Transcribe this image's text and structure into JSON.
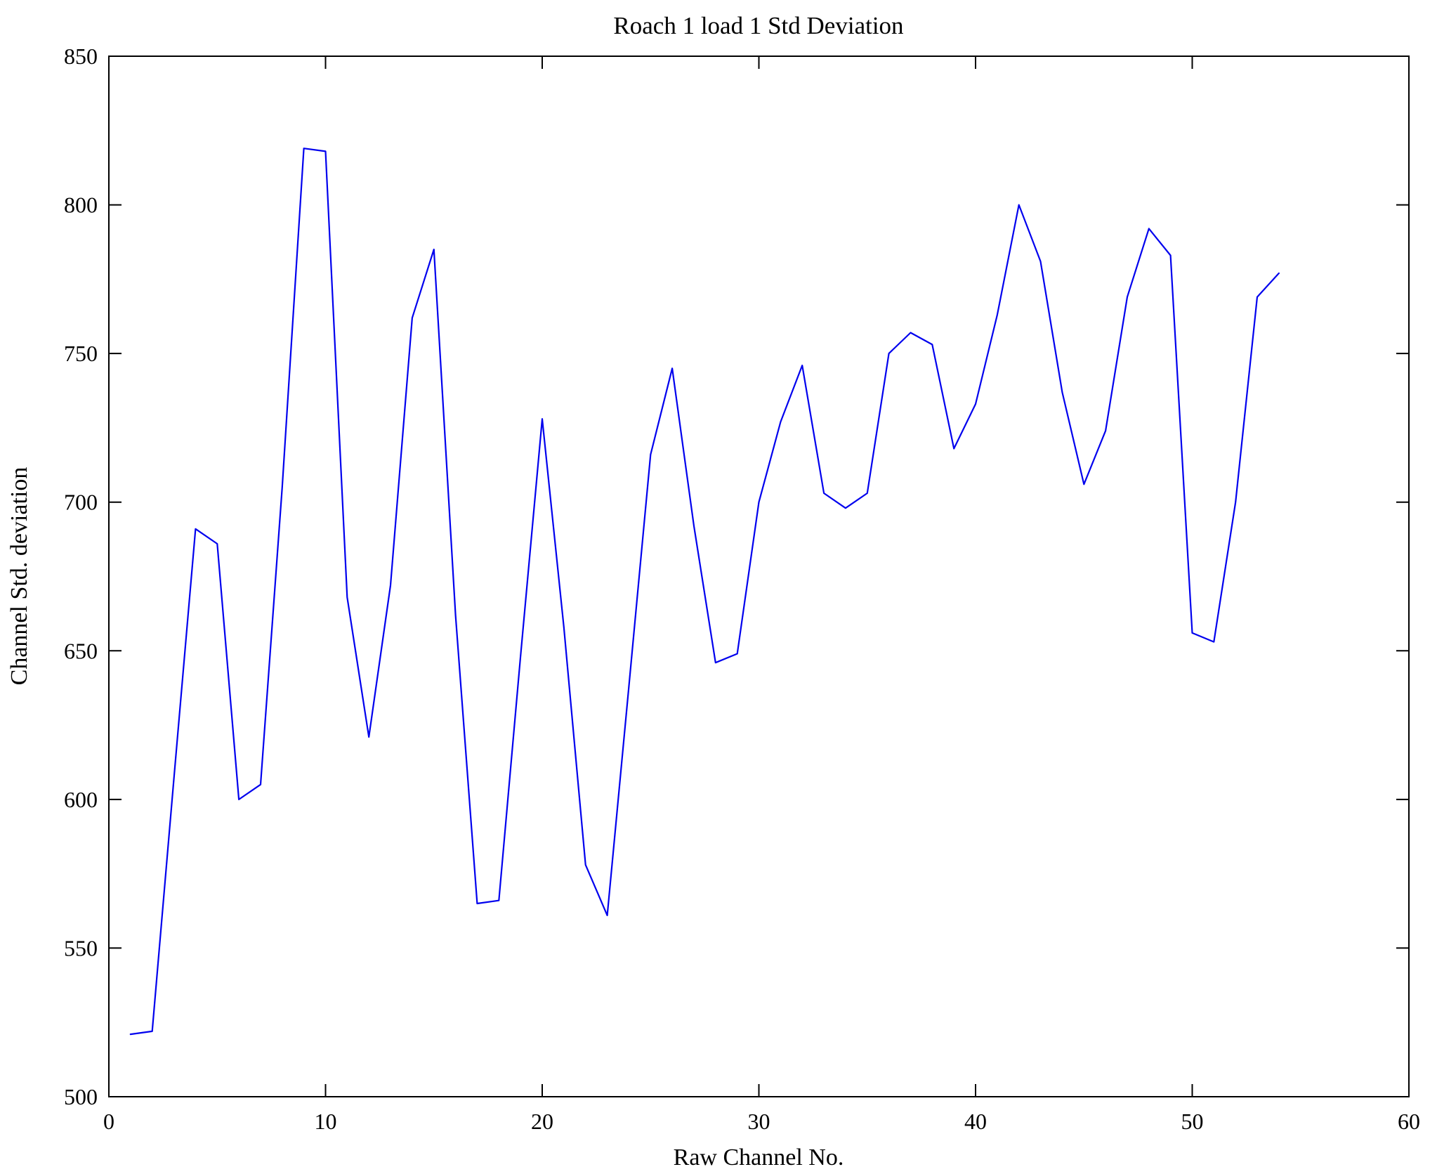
{
  "chart_data": {
    "type": "line",
    "title": "Roach 1 load 1 Std Deviation",
    "xlabel": "Raw Channel No.",
    "ylabel": "Channel Std. deviation",
    "xlim": [
      0,
      60
    ],
    "ylim": [
      500,
      850
    ],
    "x_ticks": [
      0,
      10,
      20,
      30,
      40,
      50,
      60
    ],
    "y_ticks": [
      500,
      550,
      600,
      650,
      700,
      750,
      800,
      850
    ],
    "grid": false,
    "legend_position": "none",
    "line_color": "#0000ee",
    "x": [
      1,
      2,
      3,
      4,
      5,
      6,
      7,
      8,
      9,
      10,
      11,
      12,
      13,
      14,
      15,
      16,
      17,
      18,
      19,
      20,
      21,
      22,
      23,
      24,
      25,
      26,
      27,
      28,
      29,
      30,
      31,
      32,
      33,
      34,
      35,
      36,
      37,
      38,
      39,
      40,
      41,
      42,
      43,
      44,
      45,
      46,
      47,
      48,
      49,
      50,
      51,
      52,
      53,
      54
    ],
    "y": [
      521,
      522,
      607,
      691,
      686,
      600,
      605,
      705,
      819,
      818,
      668,
      621,
      672,
      762,
      785,
      662,
      565,
      566,
      648,
      728,
      658,
      578,
      561,
      638,
      716,
      745,
      692,
      646,
      649,
      700,
      727,
      746,
      703,
      698,
      703,
      750,
      757,
      753,
      718,
      733,
      763,
      800,
      781,
      737,
      706,
      724,
      769,
      792,
      783,
      656,
      653,
      700,
      769,
      777
    ]
  }
}
